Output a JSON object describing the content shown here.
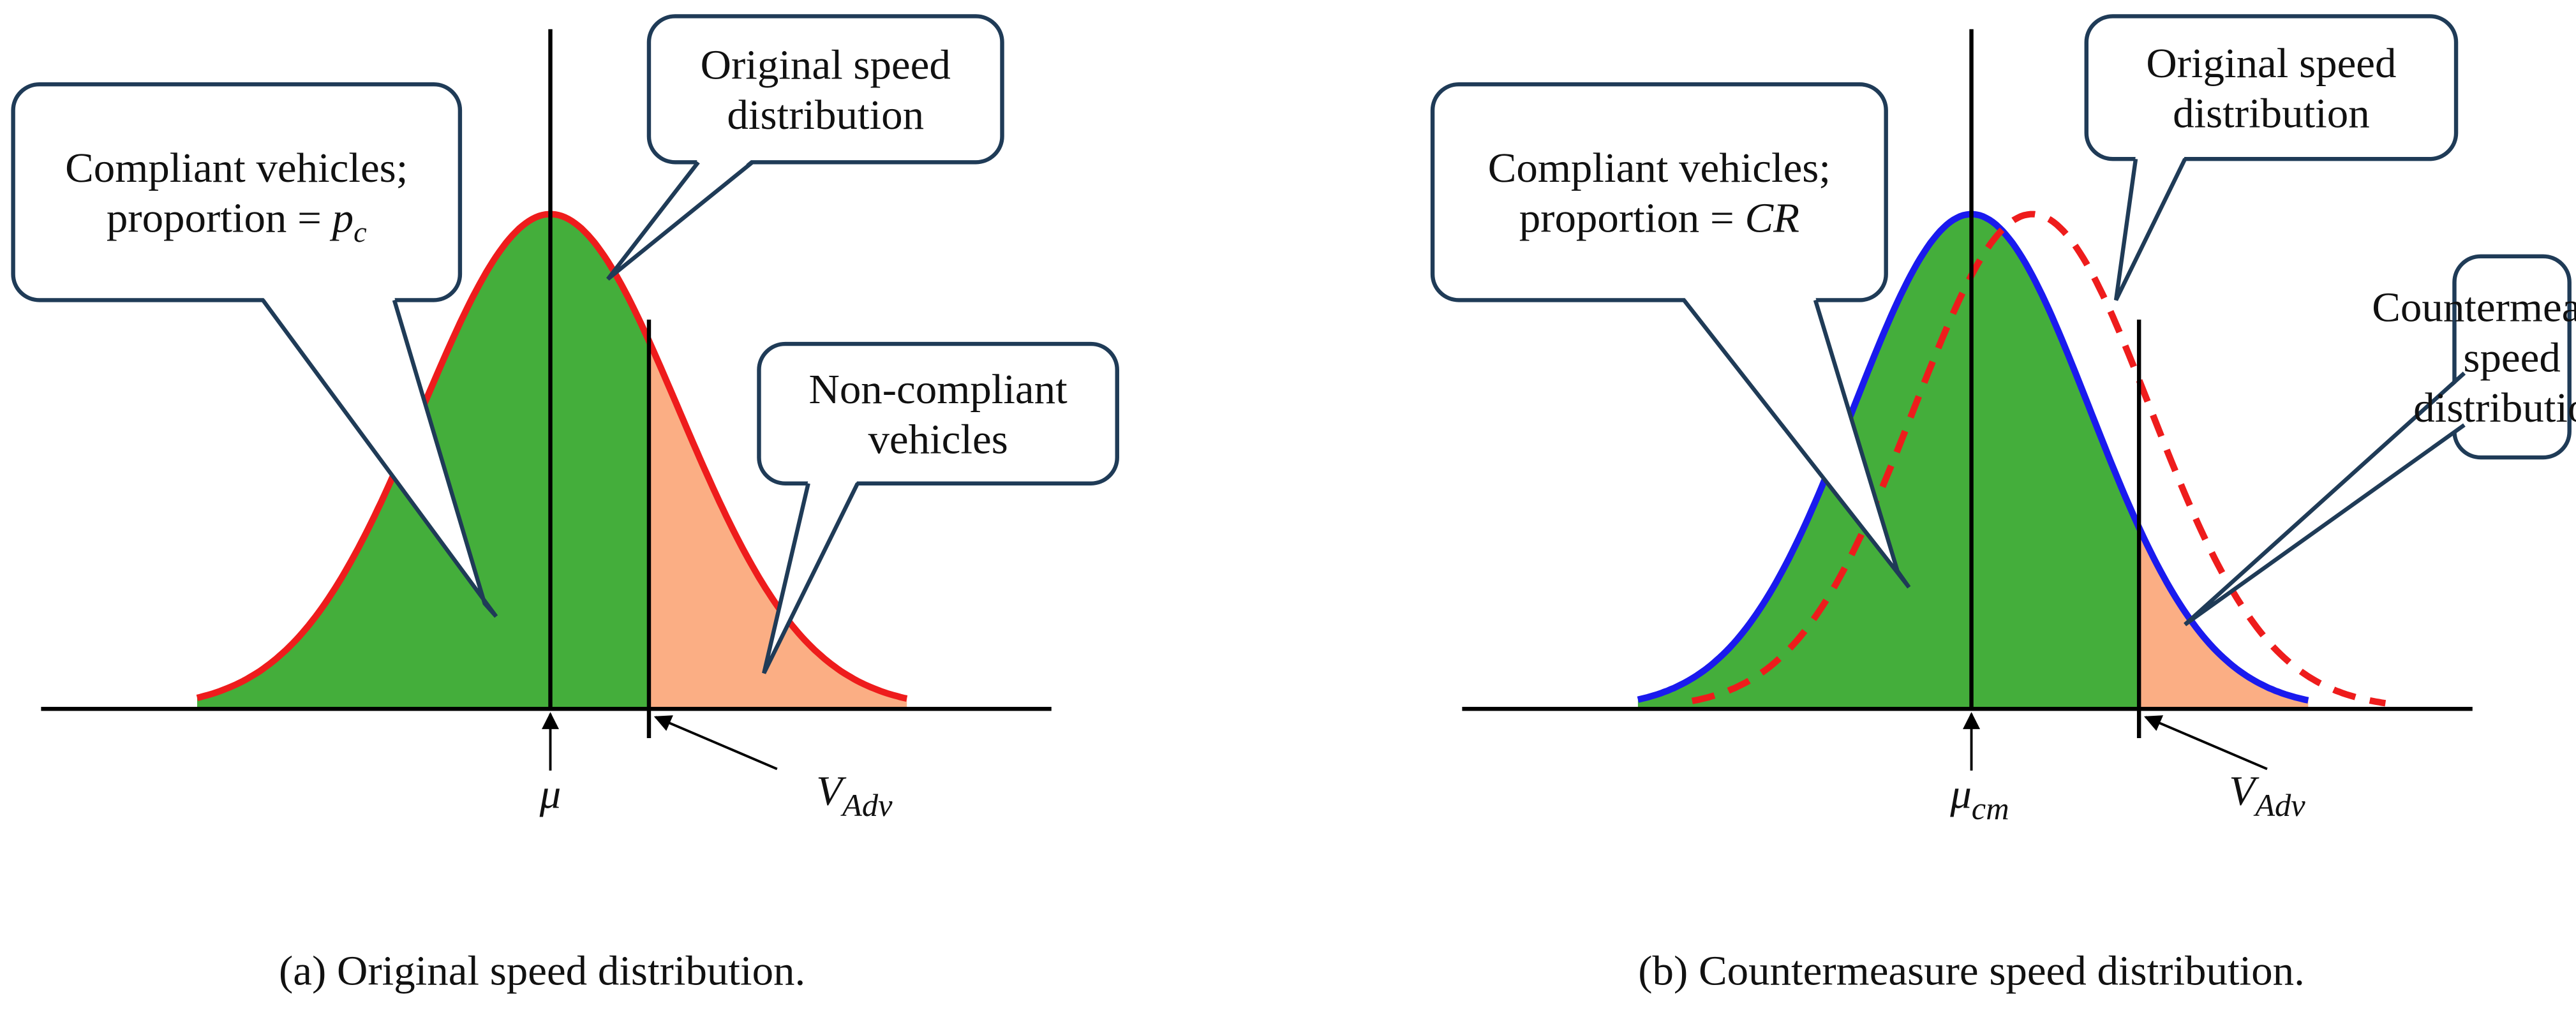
{
  "panels": [
    {
      "callouts": [
        {
          "lines": [
            "Original speed",
            "distribution"
          ]
        },
        {
          "lines": [
            "Compliant vehicles;",
            "proportion = "
          ],
          "math": {
            "base": "p",
            "sub": "c"
          }
        },
        {
          "lines": [
            "Non-compliant",
            "vehicles"
          ]
        }
      ],
      "mean_label": {
        "base": "μ"
      },
      "limit_label": {
        "base": "V",
        "sub": "Adv"
      },
      "caption": "(a) Original speed distribution."
    },
    {
      "callouts": [
        {
          "lines": [
            "Original speed",
            "distribution"
          ]
        },
        {
          "lines": [
            "Compliant vehicles;",
            "proportion = "
          ],
          "math": {
            "base": "CR"
          }
        },
        {
          "lines": [
            "Countermeasure",
            "speed",
            "distribution"
          ]
        }
      ],
      "mean_label": {
        "base": "μ",
        "sub": "cm"
      },
      "limit_label": {
        "base": "V",
        "sub": "Adv"
      },
      "caption": "(b) Countermeasure speed distribution."
    }
  ]
}
